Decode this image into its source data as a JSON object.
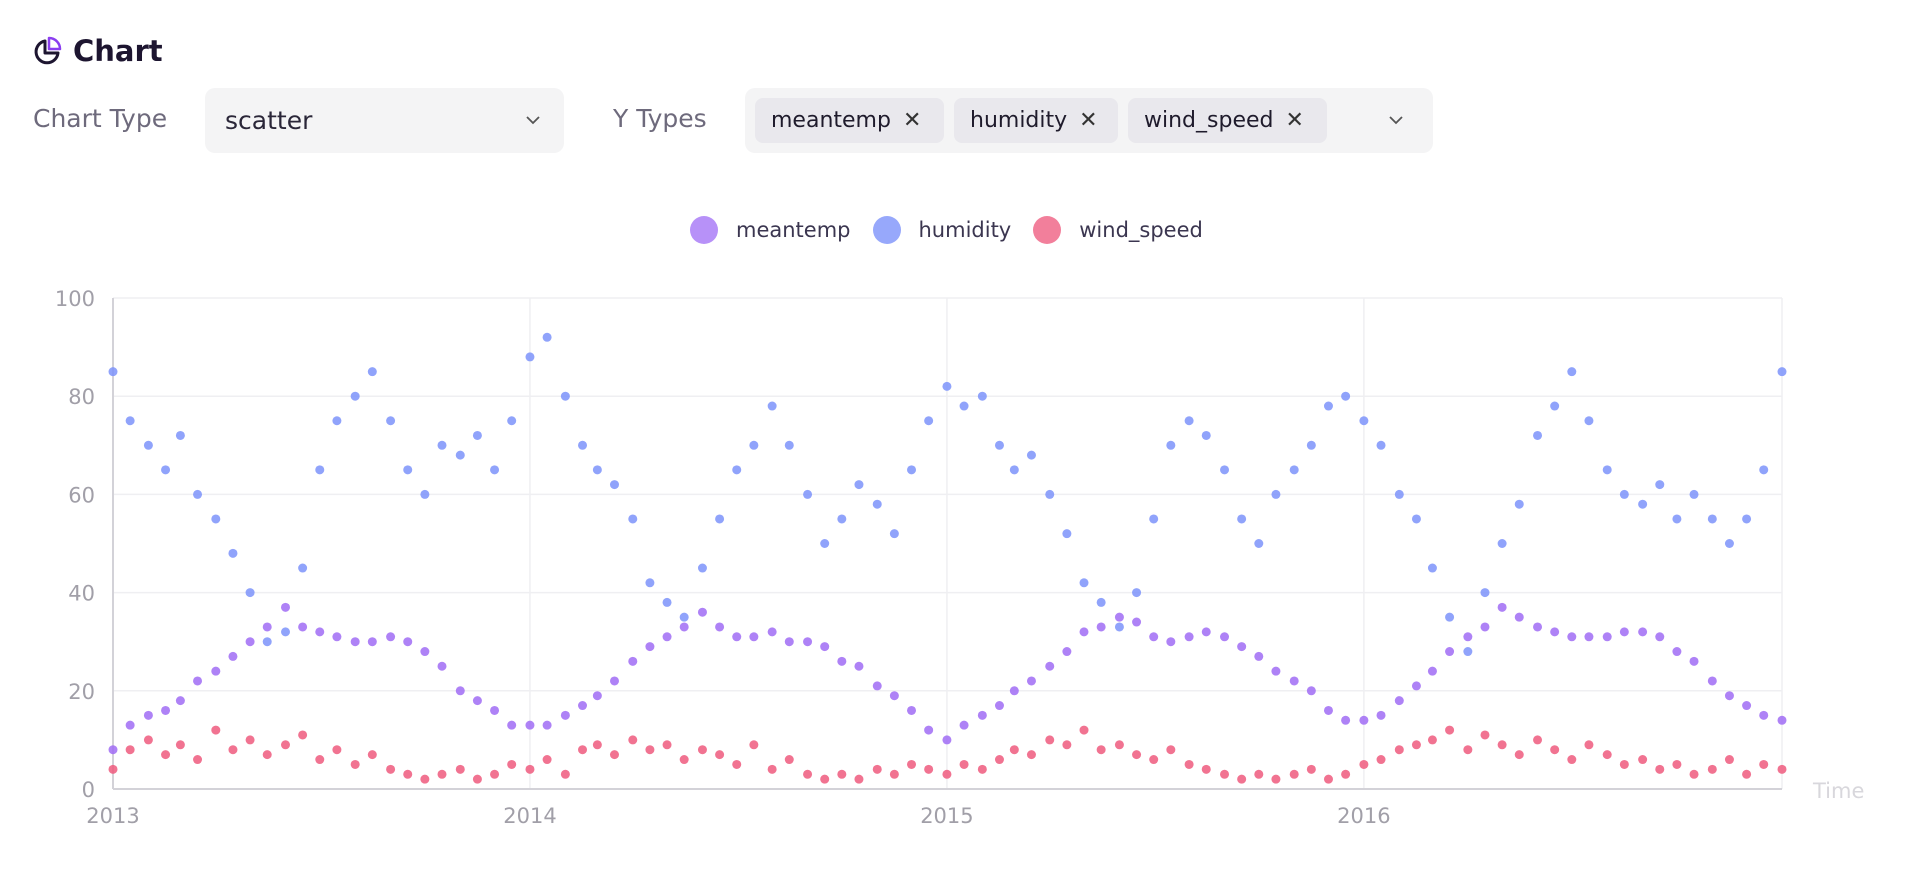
{
  "header": {
    "title": "Chart",
    "icon": "pie-chart-icon",
    "icon_accent": "#8b3ef0"
  },
  "controls": {
    "chart_type_label": "Chart Type",
    "chart_type_value": "scatter",
    "y_types_label": "Y Types",
    "y_types_selected": [
      "meantemp",
      "humidity",
      "wind_speed"
    ]
  },
  "chart_data": {
    "type": "scatter",
    "xlabel": "Time",
    "ylabel": "",
    "xlim": [
      "2013-01-01",
      "2017-01-01"
    ],
    "ylim": [
      0,
      100
    ],
    "x_ticks": [
      "2013",
      "2014",
      "2015",
      "2016"
    ],
    "y_ticks": [
      0,
      20,
      40,
      60,
      80,
      100
    ],
    "grid": true,
    "legend_position": "top-center",
    "x": [
      "2013-01-01",
      "2013-01-16",
      "2013-02-01",
      "2013-02-16",
      "2013-03-01",
      "2013-03-16",
      "2013-04-01",
      "2013-04-16",
      "2013-05-01",
      "2013-05-16",
      "2013-06-01",
      "2013-06-16",
      "2013-07-01",
      "2013-07-16",
      "2013-08-01",
      "2013-08-16",
      "2013-09-01",
      "2013-09-16",
      "2013-10-01",
      "2013-10-16",
      "2013-11-01",
      "2013-11-16",
      "2013-12-01",
      "2013-12-16",
      "2014-01-01",
      "2014-01-16",
      "2014-02-01",
      "2014-02-16",
      "2014-03-01",
      "2014-03-16",
      "2014-04-01",
      "2014-04-16",
      "2014-05-01",
      "2014-05-16",
      "2014-06-01",
      "2014-06-16",
      "2014-07-01",
      "2014-07-16",
      "2014-08-01",
      "2014-08-16",
      "2014-09-01",
      "2014-09-16",
      "2014-10-01",
      "2014-10-16",
      "2014-11-01",
      "2014-11-16",
      "2014-12-01",
      "2014-12-16",
      "2015-01-01",
      "2015-01-16",
      "2015-02-01",
      "2015-02-16",
      "2015-03-01",
      "2015-03-16",
      "2015-04-01",
      "2015-04-16",
      "2015-05-01",
      "2015-05-16",
      "2015-06-01",
      "2015-06-16",
      "2015-07-01",
      "2015-07-16",
      "2015-08-01",
      "2015-08-16",
      "2015-09-01",
      "2015-09-16",
      "2015-10-01",
      "2015-10-16",
      "2015-11-01",
      "2015-11-16",
      "2015-12-01",
      "2015-12-16",
      "2016-01-01",
      "2016-01-16",
      "2016-02-01",
      "2016-02-16",
      "2016-03-01",
      "2016-03-16",
      "2016-04-01",
      "2016-04-16",
      "2016-05-01",
      "2016-05-16",
      "2016-06-01",
      "2016-06-16",
      "2016-07-01",
      "2016-07-16",
      "2016-08-01",
      "2016-08-16",
      "2016-09-01",
      "2016-09-16",
      "2016-10-01",
      "2016-10-16",
      "2016-11-01",
      "2016-11-16",
      "2016-12-01",
      "2016-12-16",
      "2017-01-01"
    ],
    "series": [
      {
        "name": "meantemp",
        "color": "#a06cf5",
        "legend_color": "#b791f8",
        "values": [
          8,
          13,
          15,
          16,
          18,
          22,
          24,
          27,
          30,
          33,
          37,
          33,
          32,
          31,
          30,
          30,
          31,
          30,
          28,
          25,
          20,
          18,
          16,
          13,
          13,
          13,
          15,
          17,
          19,
          22,
          26,
          29,
          31,
          33,
          36,
          33,
          31,
          31,
          32,
          30,
          30,
          29,
          26,
          25,
          21,
          19,
          16,
          12,
          10,
          13,
          15,
          17,
          20,
          22,
          25,
          28,
          32,
          33,
          35,
          34,
          31,
          30,
          31,
          32,
          31,
          29,
          27,
          24,
          22,
          20,
          16,
          14,
          14,
          15,
          18,
          21,
          24,
          28,
          31,
          33,
          37,
          35,
          33,
          32,
          31,
          31,
          31,
          32,
          32,
          31,
          28,
          26,
          22,
          19,
          17,
          15,
          14
        ]
      },
      {
        "name": "humidity",
        "color": "#7c93fa",
        "legend_color": "#97a8fb",
        "values": [
          85,
          75,
          70,
          65,
          72,
          60,
          55,
          48,
          40,
          30,
          32,
          45,
          65,
          75,
          80,
          85,
          75,
          65,
          60,
          70,
          68,
          72,
          65,
          75,
          88,
          92,
          80,
          70,
          65,
          62,
          55,
          42,
          38,
          35,
          45,
          55,
          65,
          70,
          78,
          70,
          60,
          50,
          55,
          62,
          58,
          52,
          65,
          75,
          82,
          78,
          80,
          70,
          65,
          68,
          60,
          52,
          42,
          38,
          33,
          40,
          55,
          70,
          75,
          72,
          65,
          55,
          50,
          60,
          65,
          70,
          78,
          80,
          75,
          70,
          60,
          55,
          45,
          35,
          28,
          40,
          50,
          58,
          72,
          78,
          85,
          75,
          65,
          60,
          58,
          62,
          55,
          60,
          55,
          50,
          55,
          65,
          85
        ]
      },
      {
        "name": "wind_speed",
        "color": "#ee5a7e",
        "legend_color": "#f27f9b",
        "values": [
          4,
          8,
          10,
          7,
          9,
          6,
          12,
          8,
          10,
          7,
          9,
          11,
          6,
          8,
          5,
          7,
          4,
          3,
          2,
          3,
          4,
          2,
          3,
          5,
          4,
          6,
          3,
          8,
          9,
          7,
          10,
          8,
          9,
          6,
          8,
          7,
          5,
          9,
          4,
          6,
          3,
          2,
          3,
          2,
          4,
          3,
          5,
          4,
          3,
          5,
          4,
          6,
          8,
          7,
          10,
          9,
          12,
          8,
          9,
          7,
          6,
          8,
          5,
          4,
          3,
          2,
          3,
          2,
          3,
          4,
          2,
          3,
          5,
          6,
          8,
          9,
          10,
          12,
          8,
          11,
          9,
          7,
          10,
          8,
          6,
          9,
          7,
          5,
          6,
          4,
          5,
          3,
          4,
          6,
          3,
          5,
          4
        ]
      }
    ]
  }
}
